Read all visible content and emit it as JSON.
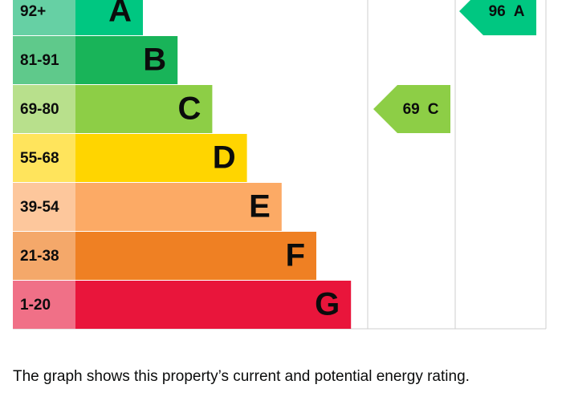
{
  "bands": [
    {
      "range": "92+",
      "rating": "A",
      "color": "#00c781",
      "label_color": "#66d0a4"
    },
    {
      "range": "81-91",
      "rating": "B",
      "color": "#19b459",
      "label_color": "#5fc98b"
    },
    {
      "range": "69-80",
      "rating": "C",
      "color": "#8dce46",
      "label_color": "#b8e08c"
    },
    {
      "range": "55-68",
      "rating": "D",
      "color": "#ffd500",
      "label_color": "#ffe45c"
    },
    {
      "range": "39-54",
      "rating": "E",
      "color": "#fcaa65",
      "label_color": "#fdc79c"
    },
    {
      "range": "21-38",
      "rating": "F",
      "color": "#ef8023",
      "label_color": "#f4a86a"
    },
    {
      "range": "1-20",
      "rating": "G",
      "color": "#e9153b",
      "label_color": "#f07087"
    }
  ],
  "current": {
    "score": 69,
    "rating": "C"
  },
  "potential": {
    "score": 96,
    "rating": "A"
  },
  "caption": "The graph shows this property’s current and potential energy rating."
}
